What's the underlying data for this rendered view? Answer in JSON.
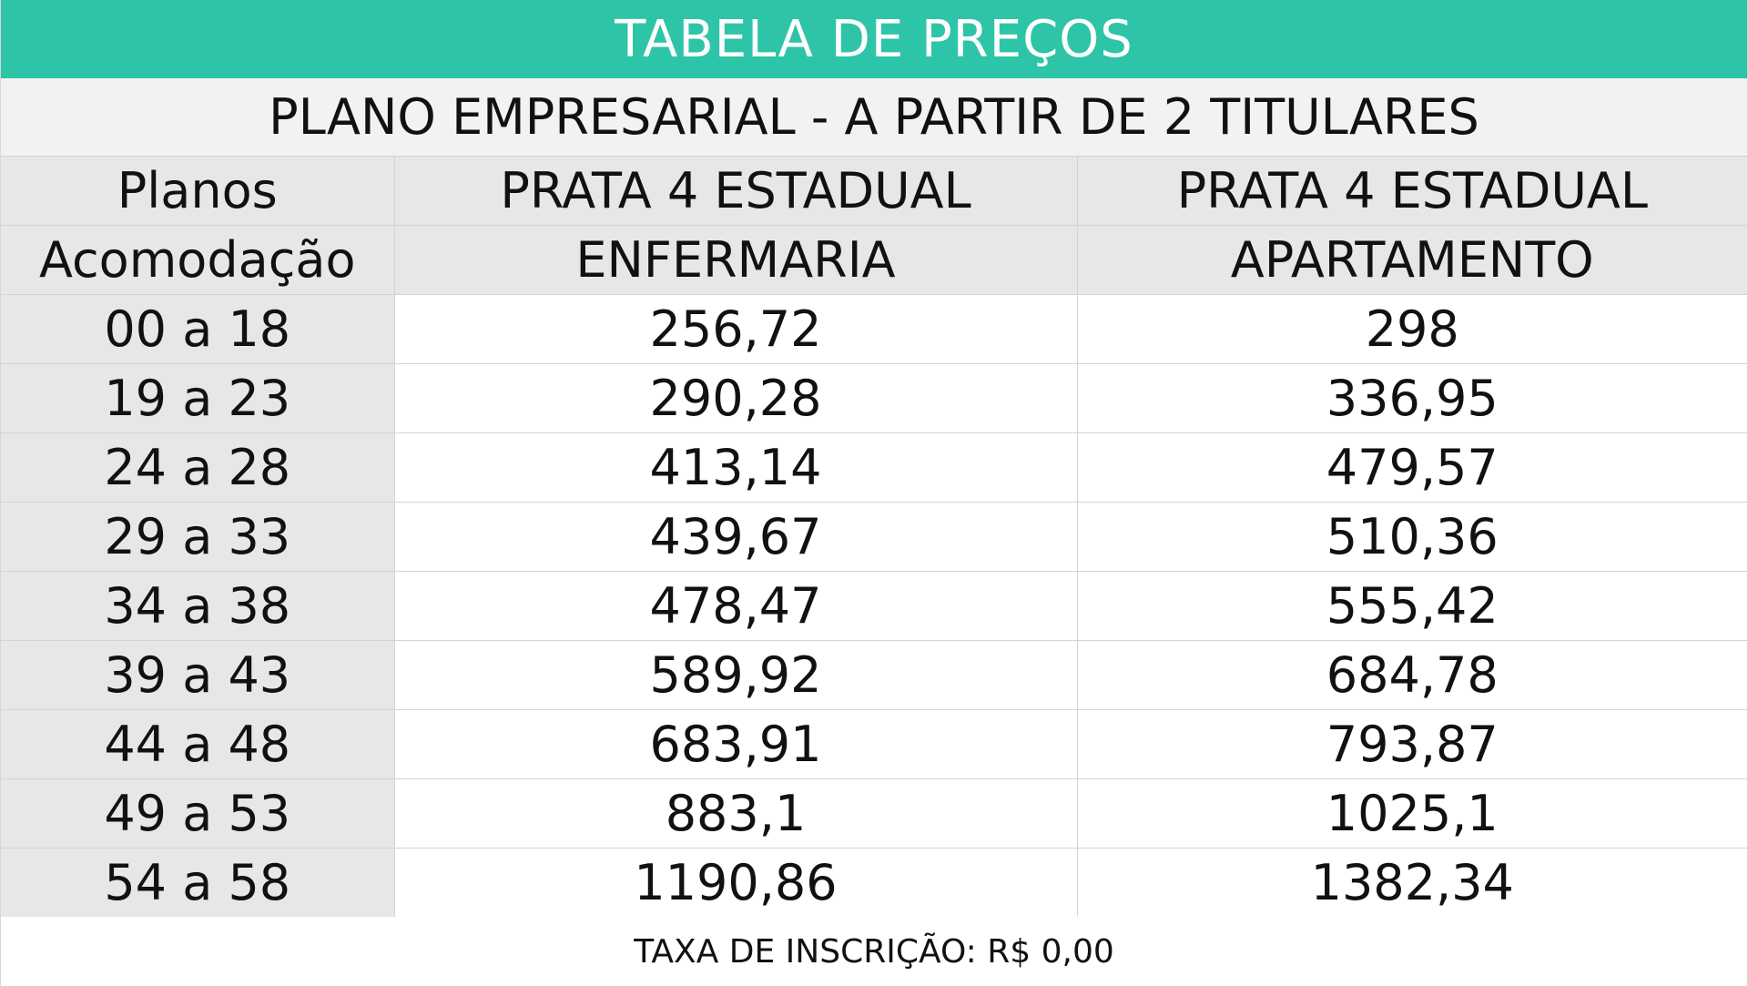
{
  "title": "TABELA DE PREÇOS",
  "subtitle": "PLANO EMPRESARIAL - A PARTIR DE 2 TITULARES",
  "header_rows": [
    [
      "Planos",
      "PRATA 4 ESTADUAL",
      "PRATA 4 ESTADUAL"
    ],
    [
      "Acomodação",
      "ENFERMARIA",
      "APARTAMENTO"
    ]
  ],
  "rows": [
    {
      "age": "00 a 18",
      "enfermaria": "256,72",
      "apartamento": "298"
    },
    {
      "age": "19 a 23",
      "enfermaria": "290,28",
      "apartamento": "336,95"
    },
    {
      "age": "24 a 28",
      "enfermaria": "413,14",
      "apartamento": "479,57"
    },
    {
      "age": "29 a 33",
      "enfermaria": "439,67",
      "apartamento": "510,36"
    },
    {
      "age": "34 a 38",
      "enfermaria": "478,47",
      "apartamento": "555,42"
    },
    {
      "age": "39 a 43",
      "enfermaria": "589,92",
      "apartamento": "684,78"
    },
    {
      "age": "44 a 48",
      "enfermaria": "683,91",
      "apartamento": "793,87"
    },
    {
      "age": "49 a 53",
      "enfermaria": "883,1",
      "apartamento": "1025,1"
    },
    {
      "age": "54 a 58",
      "enfermaria": "1190,86",
      "apartamento": "1382,34"
    }
  ],
  "footer": "TAXA DE INSCRIÇÃO: R$ 0,00",
  "colors": {
    "title_bar": "#2ec4a7",
    "header_gray": "#e7e7e7",
    "subtitle_gray": "#f2f2f2"
  }
}
